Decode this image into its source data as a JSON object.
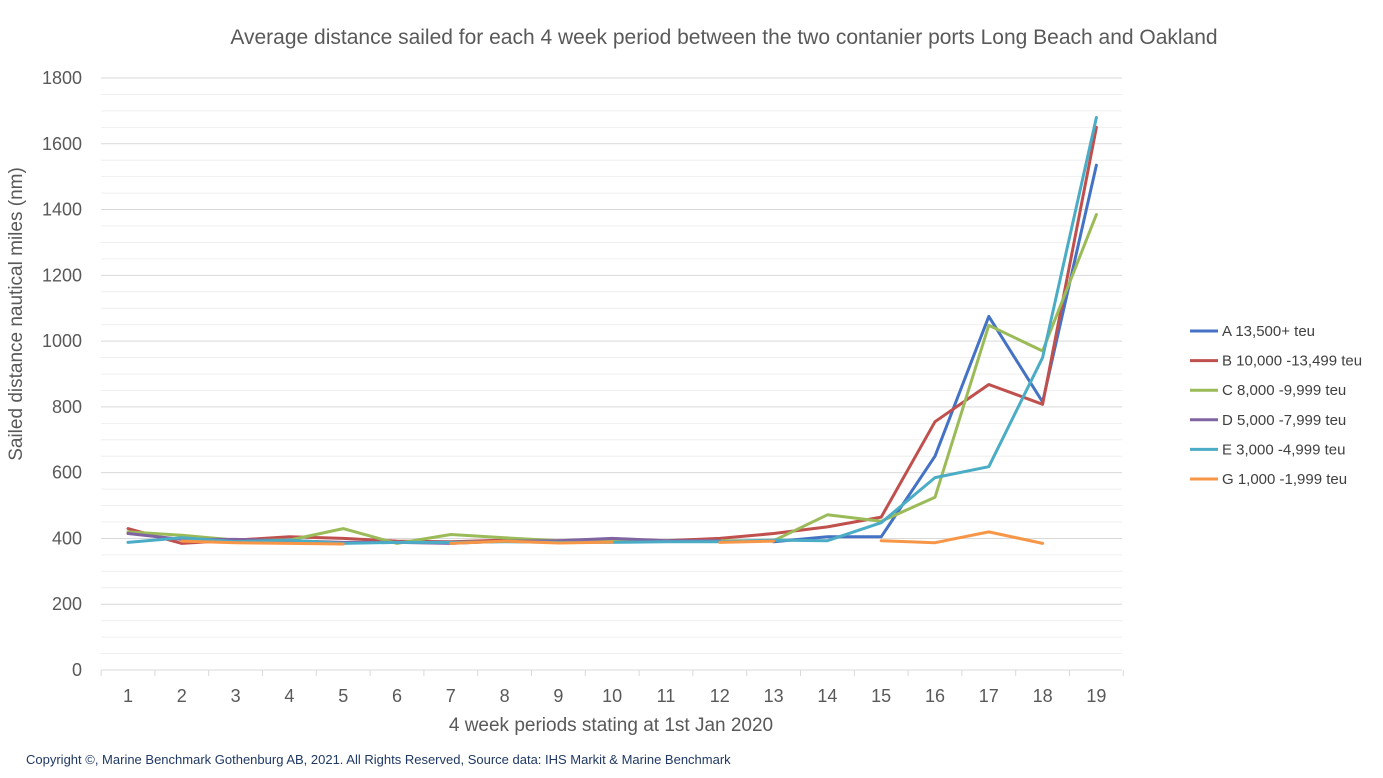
{
  "chart_data": {
    "type": "line",
    "title": "Average distance sailed for each 4 week period between the two contanier ports Long Beach and Oakland",
    "xlabel": "4 week periods stating at 1st Jan 2020",
    "ylabel": "Sailed distance nautical miles (nm)",
    "ylim": [
      0,
      1800
    ],
    "y_ticks": [
      "0",
      "200",
      "400",
      "600",
      "800",
      "1000",
      "1200",
      "1400",
      "1600",
      "1800"
    ],
    "y_major_step": 200,
    "y_minor_step": 50,
    "grid": true,
    "legend_position": "right",
    "categories": [
      "1",
      "2",
      "3",
      "4",
      "5",
      "6",
      "7",
      "8",
      "9",
      "10",
      "11",
      "12",
      "13",
      "14",
      "15",
      "16",
      "17",
      "18",
      "19"
    ],
    "series": [
      {
        "name": "A 13,500+ teu",
        "color": "#4472c4",
        "values": [
          null,
          null,
          null,
          null,
          null,
          null,
          null,
          null,
          null,
          null,
          null,
          null,
          390,
          405,
          405,
          650,
          1075,
          815,
          1535
        ]
      },
      {
        "name": "B 10,000 -13,499 teu",
        "color": "#c0504d",
        "values": [
          430,
          385,
          395,
          405,
          400,
          392,
          390,
          395,
          393,
          398,
          393,
          400,
          415,
          435,
          465,
          755,
          868,
          808,
          1650
        ]
      },
      {
        "name": "C 8,000 -9,999 teu",
        "color": "#9bbb59",
        "values": [
          420,
          410,
          395,
          395,
          430,
          385,
          412,
          402,
          393,
          392,
          392,
          393,
          393,
          472,
          452,
          525,
          1048,
          970,
          1385
        ]
      },
      {
        "name": "D 5,000 -7,999 teu",
        "color": "#8064a2",
        "values": [
          415,
          397,
          397,
          393,
          388,
          388,
          385,
          392,
          393,
          400,
          393,
          393,
          null,
          null,
          null,
          null,
          null,
          null,
          null
        ]
      },
      {
        "name": "E 3,000 -4,999 teu",
        "color": "#4bacc6",
        "values": [
          388,
          402,
          390,
          395,
          385,
          388,
          388,
          390,
          388,
          388,
          390,
          390,
          395,
          393,
          448,
          585,
          618,
          950,
          1680
        ]
      },
      {
        "name": "G 1,000 -1,999 teu",
        "color": "#f79646",
        "values": [
          null,
          392,
          387,
          385,
          383,
          null,
          385,
          392,
          386,
          389,
          null,
          388,
          392,
          null,
          393,
          387,
          420,
          385,
          null
        ]
      }
    ]
  },
  "footer": {
    "copyright": "Copyright ©, Marine Benchmark Gothenburg AB, 2021. All Rights Reserved, Source data: IHS Markit & Marine Benchmark"
  }
}
